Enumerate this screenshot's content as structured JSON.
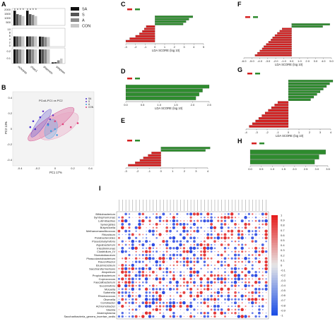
{
  "panels": {
    "A": "A",
    "B": "B",
    "C": "C",
    "D": "D",
    "E": "E",
    "F": "F",
    "G": "G",
    "H": "H",
    "I": "I"
  },
  "colors": {
    "SA": "#111111",
    "S": "#555555",
    "A": "#8a8a8a",
    "CON": "#c8c8c8",
    "lda_pos": "#2e8b2e",
    "lda_neg": "#d42020",
    "heat_pos": "#e02020",
    "heat_neg": "#2040e0"
  },
  "chart_data": [
    {
      "id": "A",
      "type": "bar",
      "categories": [
        "richness",
        "chao1",
        "shannon",
        "simpson"
      ],
      "series": [
        {
          "name": "SA",
          "values": [
            1900,
            1900,
            5.9,
            0.016
          ]
        },
        {
          "name": "S",
          "values": [
            1450,
            1450,
            5.8,
            0.02
          ]
        },
        {
          "name": "A",
          "values": [
            1350,
            1350,
            5.6,
            0.045
          ]
        },
        {
          "name": "CON",
          "values": [
            1200,
            1200,
            5.6,
            0.07
          ]
        }
      ],
      "sig_letters": [
        [
          "a",
          "a",
          "b",
          "b"
        ],
        [
          "a",
          "a",
          "b",
          "b"
        ]
      ],
      "yticks_top": [
        "2000",
        "1500",
        "1000",
        "500"
      ],
      "yticks_mid": [
        "10",
        "8",
        "6",
        "4",
        "2",
        "0"
      ],
      "yticks_low": [
        "0.2",
        "0.1"
      ]
    },
    {
      "id": "B",
      "type": "scatter",
      "title": "PCoA-PC1 vs PC2",
      "xlabel": "PC1 17%",
      "ylabel": "PC2 13%",
      "xticks": [
        "-0.4",
        "-0.2",
        "0",
        "0.2",
        "0.4"
      ],
      "yticks": [
        "0.4",
        "0.2",
        "0",
        "-0.2",
        "-0.4"
      ],
      "series": [
        {
          "name": "SA",
          "color": "#4a2fd0",
          "points": [
            [
              -0.23,
              0.02
            ],
            [
              -0.2,
              0.08
            ],
            [
              -0.13,
              0.12
            ],
            [
              -0.18,
              0.0
            ]
          ]
        },
        {
          "name": "S",
          "color": "#6a3ac8",
          "points": [
            [
              -0.1,
              0.18
            ],
            [
              -0.03,
              0.1
            ],
            [
              0.0,
              0.14
            ],
            [
              -0.05,
              0.05
            ]
          ]
        },
        {
          "name": "A",
          "color": "#3fa0e0",
          "points": [
            [
              -0.05,
              0.04
            ],
            [
              -0.02,
              -0.02
            ],
            [
              0.02,
              0.0
            ],
            [
              0.04,
              -0.06
            ]
          ]
        },
        {
          "name": "CON",
          "color": "#e0407a",
          "points": [
            [
              0.02,
              0.08
            ],
            [
              0.1,
              0.05
            ],
            [
              0.18,
              0.02
            ],
            [
              0.25,
              0.06
            ]
          ]
        }
      ]
    },
    {
      "id": "C",
      "type": "bar",
      "xlabel": "LDA SCORE (log 10)",
      "xticks": [
        "-3",
        "-2",
        "-1",
        "0",
        "1",
        "2",
        "3",
        "4",
        "5"
      ],
      "values": [
        3.9,
        3.5,
        3.2,
        2.9,
        -0.9,
        -1.1,
        -1.3,
        -1.6,
        -2.0,
        -2.6,
        -3.0
      ]
    },
    {
      "id": "D",
      "type": "bar",
      "xlabel": "LDA SCORE (log 10)",
      "xticks": [
        "0.0",
        "0.5",
        "1.0",
        "1.5",
        "2.0",
        "2.5"
      ],
      "values": [
        2.5,
        2.3,
        2.2,
        2.1
      ]
    },
    {
      "id": "E",
      "type": "bar",
      "xticks": [
        "-3",
        "-2",
        "-1",
        "0",
        "1",
        "2",
        "3",
        "4"
      ],
      "values": [
        4.2,
        3.8,
        -0.8,
        -1.1,
        -1.5,
        -1.8,
        -2.2,
        -2.8
      ]
    },
    {
      "id": "F",
      "type": "bar",
      "xlabel": "LDA SCORE (log 10)",
      "xticks": [
        "-6.0",
        "-5.0",
        "-4.0",
        "-3.0",
        "-2.0",
        "-1.0",
        "0.0",
        "1.0",
        "2.0",
        "3.0",
        "4.0",
        "5.0"
      ],
      "values": [
        4.8,
        3.9,
        -1.2,
        -1.5,
        -1.8,
        -2.1,
        -2.4,
        -2.6,
        -2.9,
        -3.2,
        -3.5,
        -3.7,
        -4.0,
        -4.3,
        -4.6
      ]
    },
    {
      "id": "G",
      "type": "bar",
      "xlabel": "LDA SCORE (log 10)",
      "xticks": [
        "-4",
        "-3",
        "-2",
        "-1",
        "0",
        "1",
        "2",
        "3",
        "4"
      ],
      "values": [
        4.2,
        3.9,
        3.6,
        3.3,
        3.0,
        2.7,
        2.4,
        2.1,
        -1.0,
        -1.3,
        -1.6,
        -1.9,
        -2.2,
        -2.5,
        -2.8,
        -3.1,
        -3.4,
        -3.7
      ]
    },
    {
      "id": "H",
      "type": "bar",
      "xticks": [
        "0.0",
        "0.5",
        "1.0",
        "1.5",
        "2.0",
        "2.5",
        "3.0",
        "3.5"
      ],
      "values": [
        3.4,
        3.1,
        2.9
      ]
    },
    {
      "id": "I",
      "type": "heatmap",
      "rows": [
        "Bifidobacterium",
        "Syntrophomonas",
        "Lutimibacillus",
        "Synergistes",
        "Butyricicella",
        "Methanomassiliicoccus",
        "Rhizobium",
        "Parabacteroides",
        "Pseudobutyrivibrio",
        "Aquabacterium",
        "Intestinimonas",
        "Clostridium_IV",
        "Stomatobaculum",
        "Phascolarctobacterium",
        "Flavonifractor",
        "Elusimicrobium",
        "Saccharofermentans",
        "Atopobium",
        "Propionibacterium",
        "Coprococcus",
        "Faecalibacterium",
        "Succinivibrio",
        "Moryella",
        "Sutterella",
        "Rhodococcus",
        "Olsenella",
        "Coriobacter",
        "Achromobacter",
        "Slackia",
        "Anaeroplasma",
        "Saccharibacteria_genera_incertae_sedis"
      ],
      "colorbar_ticks": [
        "1",
        "0.9",
        "0.8",
        "0.7",
        "0.6",
        "0.5",
        "0.4",
        "0.3",
        "0.2",
        "0.1",
        "0",
        "-0.1",
        "-0.2",
        "-0.3",
        "-0.4",
        "-0.5",
        "-0.6",
        "-0.7",
        "-0.8",
        "-0.9",
        "-1"
      ],
      "n_cols": 44
    }
  ]
}
